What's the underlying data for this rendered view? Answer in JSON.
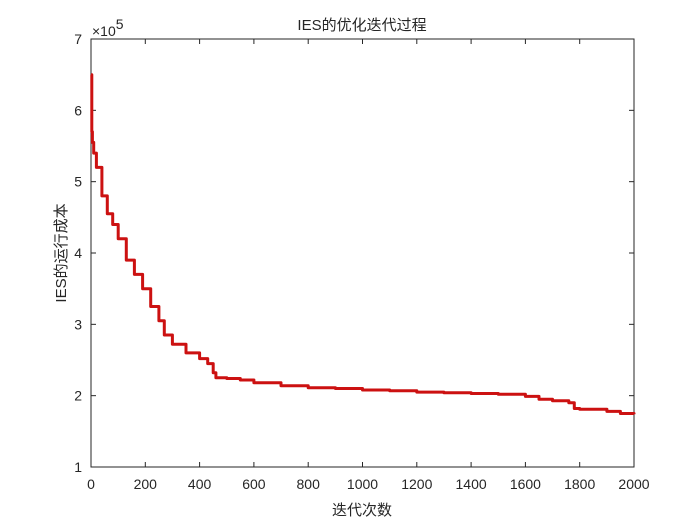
{
  "chart_data": {
    "type": "line",
    "title": "IES的优化迭代过程",
    "xlabel": "迭代次数",
    "ylabel": "IES的运行成本",
    "xlim": [
      0,
      2000
    ],
    "ylim": [
      100000,
      700000
    ],
    "x_ticks": [
      0,
      200,
      400,
      600,
      800,
      1000,
      1200,
      1400,
      1600,
      1800,
      2000
    ],
    "y_ticks": [
      1,
      2,
      3,
      4,
      5,
      6,
      7
    ],
    "y_multiplier": "×10",
    "y_exponent": "5",
    "grid": false,
    "series": [
      {
        "color": "#cc1111",
        "x": [
          0,
          3,
          5,
          10,
          20,
          40,
          60,
          80,
          100,
          130,
          160,
          190,
          220,
          250,
          270,
          300,
          350,
          400,
          430,
          450,
          460,
          500,
          550,
          600,
          700,
          800,
          900,
          1000,
          1100,
          1200,
          1300,
          1400,
          1500,
          1600,
          1650,
          1700,
          1760,
          1780,
          1800,
          1900,
          1950,
          2000
        ],
        "y": [
          650000,
          570000,
          555000,
          540000,
          520000,
          480000,
          455000,
          440000,
          420000,
          390000,
          370000,
          350000,
          325000,
          305000,
          285000,
          272000,
          260000,
          252000,
          245000,
          232000,
          225000,
          224000,
          222000,
          218000,
          214000,
          211000,
          210000,
          208000,
          207000,
          205000,
          204000,
          203000,
          202000,
          199000,
          195000,
          193000,
          190000,
          182000,
          181000,
          178000,
          175000,
          174000
        ]
      }
    ]
  }
}
